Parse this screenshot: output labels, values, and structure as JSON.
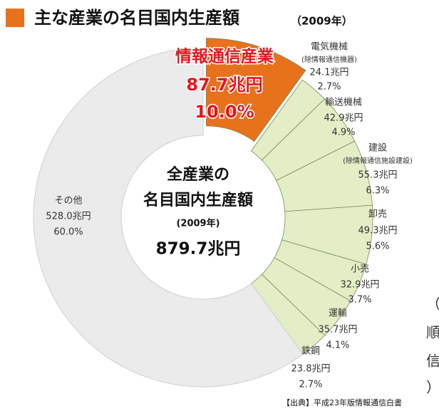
{
  "chart_data": {
    "type": "pie",
    "title": "主な産業の名目国内生産額",
    "subtitle": "（2009年）",
    "center_text": [
      "全産業の",
      "名目国内生産額",
      "(2009年)",
      "879.7兆円"
    ],
    "source": "【出典】平成23年版情報通信白書",
    "edge_text": [
      "（",
      "順",
      "信",
      "）"
    ],
    "categories": [
      "情報通信産業",
      "電気機械",
      "輸送機械",
      "建設",
      "卸売",
      "小売",
      "運輸",
      "鉄鋼",
      "その他"
    ],
    "category_notes": [
      null,
      "(除情報通信機器)",
      null,
      "(除情報通信施設建設)",
      null,
      null,
      null,
      null,
      null
    ],
    "values": [
      87.7,
      24.1,
      42.9,
      55.3,
      49.3,
      32.9,
      35.7,
      23.8,
      528.0
    ],
    "value_labels": [
      "87.7兆円",
      "24.1兆円",
      "42.9兆円",
      "55.3兆円",
      "49.3兆円",
      "32.9兆円",
      "35.7兆円",
      "23.8兆円",
      "528.0兆円"
    ],
    "percents": [
      10.0,
      2.7,
      4.9,
      6.3,
      5.6,
      3.7,
      4.1,
      2.7,
      60.0
    ],
    "percent_labels": [
      "10.0%",
      "2.7%",
      "4.9%",
      "6.3%",
      "5.6%",
      "3.7%",
      "4.1%",
      "2.7%",
      "60.0%"
    ],
    "colors": [
      "#e8711c",
      "#e3eec6",
      "#e3eec6",
      "#e3eec6",
      "#e3eec6",
      "#e3eec6",
      "#e3eec6",
      "#e3eec6",
      "#ebebeb"
    ]
  }
}
